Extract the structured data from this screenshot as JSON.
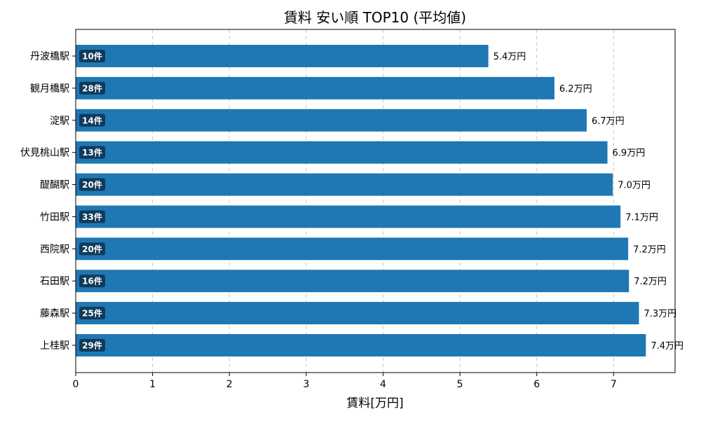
{
  "chart_data": {
    "type": "bar",
    "orientation": "horizontal",
    "title": "賃料 安い順 TOP10 (平均値)",
    "xlabel": "賃料[万円]",
    "ylabel": "",
    "xlim": [
      0,
      7.8
    ],
    "xticks": [
      "0",
      "1",
      "2",
      "3",
      "4",
      "5",
      "6",
      "7"
    ],
    "grid": {
      "x": true,
      "y": false,
      "style": "dashed"
    },
    "bar_color": "#1f77b4",
    "badge_color": "#0e3b5b",
    "categories": [
      "丹波橋駅",
      "観月橋駅",
      "淀駅",
      "伏見桃山駅",
      "醍醐駅",
      "竹田駅",
      "西院駅",
      "石田駅",
      "藤森駅",
      "上桂駅"
    ],
    "values": [
      5.37,
      6.23,
      6.65,
      6.92,
      6.99,
      7.09,
      7.19,
      7.2,
      7.33,
      7.42
    ],
    "value_labels": [
      "5.4万円",
      "6.2万円",
      "6.7万円",
      "6.9万円",
      "7.0万円",
      "7.1万円",
      "7.2万円",
      "7.2万円",
      "7.3万円",
      "7.4万円"
    ],
    "counts": [
      "10件",
      "28件",
      "14件",
      "13件",
      "20件",
      "33件",
      "20件",
      "16件",
      "25件",
      "29件"
    ]
  }
}
